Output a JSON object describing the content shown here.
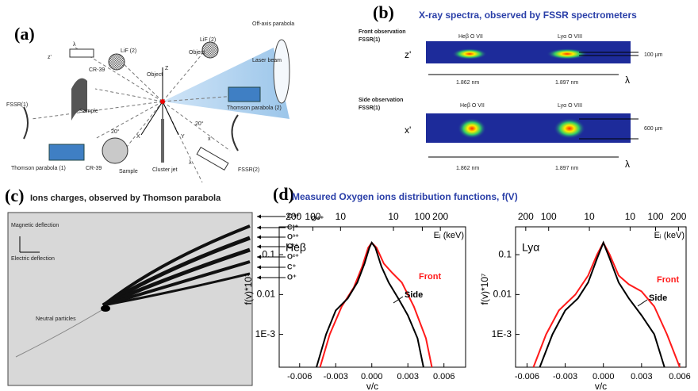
{
  "panel_a": {
    "label": "(a)",
    "texts": [
      "λ",
      "z'",
      "CR-39",
      "LiF (2)",
      "Object",
      "Sample",
      "LiF (2)",
      "Object",
      "Off-axis parabola",
      "Laser beam",
      "FSSR(1)",
      "Z",
      "X",
      "Y",
      "20°",
      "20°",
      "Thomson parabola (2)",
      "Thomson parabola (1)",
      "CR-39",
      "Sample",
      "Cluster jet",
      "x'",
      "λ",
      "FSSR(2)"
    ]
  },
  "panel_b": {
    "label": "(b)",
    "title": "X-ray spectra, observed by FSSR spectrometers",
    "front": {
      "title": "Front observation",
      "device": "FSSR(1)",
      "axis": "z'",
      "lines": [
        "Heβ O VII",
        "Lyα O VIII"
      ],
      "size": "100 µm",
      "ticks": [
        "1.862 nm",
        "1.897 nm"
      ],
      "lambda": "λ"
    },
    "side": {
      "title": "Side observation",
      "device": "FSSR(1)",
      "axis": "x'",
      "lines": [
        "Heβ O VII",
        "Lyα O VIII"
      ],
      "size": "600 µm",
      "ticks": [
        "1.862 nm",
        "1.897 nm"
      ],
      "lambda": "λ"
    }
  },
  "panel_c": {
    "label": "(c)",
    "title": "Ions charges, observed by Thomson parabola",
    "magnetic": "Magnetic deflection",
    "electric": "Electric deflection",
    "neutral": "Neutral particles",
    "ions": [
      "C⁴⁺",
      "C³⁺",
      "O³⁺",
      "C²⁺",
      "O²⁺",
      "C⁺",
      "O⁺"
    ],
    "ion_right": "O⁴⁺"
  },
  "panel_d": {
    "label": "(d)",
    "title": "Measured Oxygen ions distribution functions, f(V)"
  },
  "chart_data": [
    {
      "type": "line",
      "annotation": "Heβ",
      "ylabel": "f(v)*10⁷",
      "xlabel": "v/c",
      "x2label": "Eᵢ (keV)",
      "log_y": true,
      "xlim": [
        -0.0077,
        0.0078
      ],
      "ylim": [
        0.00015,
        0.5
      ],
      "xticks": [
        -0.006,
        -0.003,
        {
          "value": 0,
          "label": "0.000"
        },
        0.003,
        0.006
      ],
      "yticks": [
        {
          "value": 0.001,
          "label": "1E-3"
        },
        0.01,
        0.1
      ],
      "x2ticks": [
        {
          "value": -0.0065,
          "label": "200"
        },
        {
          "value": -0.0049,
          "label": "100"
        },
        {
          "value": -0.0026,
          "label": "10"
        },
        {
          "value": 0.0018,
          "label": "10"
        },
        {
          "value": 0.0042,
          "label": "100"
        },
        {
          "value": 0.0057,
          "label": "200"
        }
      ],
      "series": [
        {
          "name": "Front",
          "color": "#ff1a1a",
          "x": [
            -0.0043,
            -0.0035,
            -0.0025,
            -0.0015,
            -0.0008,
            -0.0003,
            0,
            0.0004,
            0.001,
            0.0017,
            0.0025,
            0.0035,
            0.0045,
            0.005
          ],
          "values": [
            0.00015,
            0.001,
            0.005,
            0.015,
            0.05,
            0.15,
            0.2,
            0.15,
            0.06,
            0.035,
            0.02,
            0.005,
            0.0008,
            0.00015
          ]
        },
        {
          "name": "Side",
          "color": "#000000",
          "x": [
            -0.0046,
            -0.0038,
            -0.003,
            -0.002,
            -0.0012,
            -0.0006,
            -0.0002,
            0,
            0.0003,
            0.0008,
            0.0014,
            0.0022,
            0.003,
            0.0038,
            0.0043
          ],
          "values": [
            0.00015,
            0.001,
            0.004,
            0.008,
            0.02,
            0.06,
            0.15,
            0.2,
            0.15,
            0.05,
            0.02,
            0.008,
            0.003,
            0.0008,
            0.00015
          ]
        }
      ]
    },
    {
      "type": "line",
      "annotation": "Lyα",
      "ylabel": "f(v)*10⁷",
      "xlabel": "v/c",
      "x2label": "Eᵢ (keV)",
      "log_y": true,
      "xlim": [
        -0.0069,
        0.0065
      ],
      "ylim": [
        0.00015,
        0.5
      ],
      "xticks": [
        -0.006,
        -0.003,
        {
          "value": 0,
          "label": "0.000"
        },
        0.003,
        0.006
      ],
      "yticks": [
        {
          "value": 0.001,
          "label": "1E-3"
        },
        0.01,
        0.1
      ],
      "x2ticks": [
        {
          "value": -0.0061,
          "label": "200"
        },
        {
          "value": -0.0043,
          "label": "100"
        },
        {
          "value": -0.0011,
          "label": "10"
        },
        {
          "value": 0.0021,
          "label": "10"
        },
        {
          "value": 0.0041,
          "label": "100"
        },
        {
          "value": 0.0059,
          "label": "200"
        }
      ],
      "series": [
        {
          "name": "Front",
          "color": "#ff1a1a",
          "x": [
            -0.0055,
            -0.0045,
            -0.0035,
            -0.0022,
            -0.0012,
            -0.0005,
            0,
            0.0005,
            0.0012,
            0.002,
            0.003,
            0.004,
            0.005,
            0.006
          ],
          "values": [
            0.00015,
            0.001,
            0.004,
            0.01,
            0.03,
            0.1,
            0.2,
            0.1,
            0.03,
            0.018,
            0.012,
            0.005,
            0.001,
            0.00015
          ]
        },
        {
          "name": "Side",
          "color": "#000000",
          "x": [
            -0.005,
            -0.004,
            -0.003,
            -0.002,
            -0.0012,
            -0.0005,
            0,
            0.0005,
            0.0012,
            0.002,
            0.003,
            0.004,
            0.0048
          ],
          "values": [
            0.00015,
            0.001,
            0.004,
            0.008,
            0.02,
            0.08,
            0.2,
            0.08,
            0.02,
            0.008,
            0.003,
            0.001,
            0.00015
          ]
        }
      ]
    }
  ]
}
